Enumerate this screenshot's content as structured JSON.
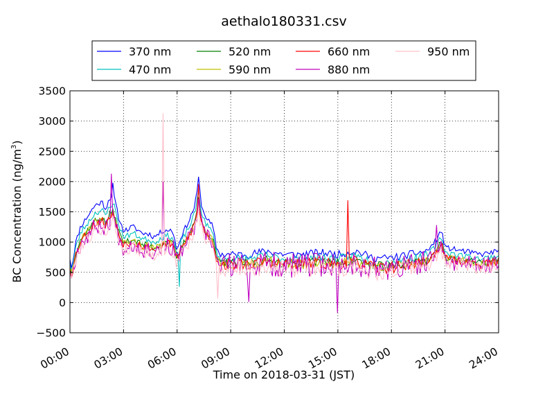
{
  "chart_data": {
    "type": "line",
    "title": "aethalo180331.csv",
    "xlabel": "Time on 2018-03-31 (JST)",
    "ylabel": "BC Concentration (ng/m",
    "ylabel_sup": "3",
    "ylabel_close": ")",
    "xlim": [
      0,
      24
    ],
    "ylim": [
      -500,
      3500
    ],
    "grid": true,
    "grid_style": "dotted",
    "legend_position": "top-center",
    "legend_columns": 4,
    "x_ticks": [
      0,
      3,
      6,
      9,
      12,
      15,
      18,
      21,
      24
    ],
    "x_tick_labels": [
      "00:00",
      "03:00",
      "06:00",
      "09:00",
      "12:00",
      "15:00",
      "18:00",
      "21:00",
      "24:00"
    ],
    "y_ticks": [
      -500,
      0,
      500,
      1000,
      1500,
      2000,
      2500,
      3000,
      3500
    ],
    "y_tick_labels": [
      "−500",
      "0",
      "500",
      "1000",
      "1500",
      "2000",
      "2500",
      "3000",
      "3500"
    ],
    "x_unit": "hours since 00:00",
    "base_profile": {
      "x": [
        0,
        0.1,
        0.3,
        0.6,
        1.0,
        1.4,
        1.8,
        2.0,
        2.2,
        2.4,
        2.5,
        2.7,
        2.9,
        3.0,
        3.2,
        3.5,
        3.8,
        4.1,
        4.4,
        4.7,
        5.0,
        5.3,
        5.6,
        5.8,
        6.0,
        6.2,
        6.4,
        6.7,
        7.0,
        7.2,
        7.4,
        7.7,
        8.0,
        8.2,
        8.4,
        8.7,
        9.0,
        10,
        11,
        12,
        13,
        14,
        15,
        16,
        17,
        18,
        19,
        20,
        20.5,
        20.8,
        21.0,
        22,
        23,
        24
      ],
      "y": [
        600,
        450,
        800,
        1050,
        1200,
        1350,
        1400,
        1300,
        1450,
        1500,
        1450,
        1200,
        1050,
        1000,
        1000,
        1050,
        1000,
        950,
        950,
        900,
        950,
        1000,
        1000,
        950,
        700,
        900,
        1000,
        1150,
        1350,
        1700,
        1300,
        1150,
        1050,
        750,
        650,
        650,
        650,
        650,
        700,
        650,
        650,
        680,
        650,
        700,
        600,
        600,
        650,
        700,
        850,
        1000,
        750,
        700,
        650,
        700
      ]
    },
    "series": [
      {
        "name": "370 nm",
        "color": "#0000ff",
        "scale": 1.16,
        "offset": 40,
        "noise": 45,
        "seed": 11
      },
      {
        "name": "470 nm",
        "color": "#00bfbf",
        "scale": 1.08,
        "offset": 20,
        "noise": 50,
        "seed": 23
      },
      {
        "name": "520 nm",
        "color": "#008000",
        "scale": 1.0,
        "offset": 0,
        "noise": 55,
        "seed": 37
      },
      {
        "name": "590 nm",
        "color": "#bfbf00",
        "scale": 0.98,
        "offset": 0,
        "noise": 60,
        "seed": 41
      },
      {
        "name": "660 nm",
        "color": "#ff0000",
        "scale": 0.97,
        "offset": 0,
        "noise": 70,
        "seed": 53
      },
      {
        "name": "880 nm",
        "color": "#bf00bf",
        "scale": 0.93,
        "offset": 0,
        "noise": 150,
        "seed": 67
      },
      {
        "name": "950 nm",
        "color": "#ffc0cb",
        "scale": 0.9,
        "offset": -20,
        "noise": 110,
        "seed": 79
      }
    ],
    "spikes": [
      {
        "series": "950 nm",
        "x": 5.25,
        "y": 3130
      },
      {
        "series": "880 nm",
        "x": 5.25,
        "y": 2000
      },
      {
        "series": "880 nm",
        "x": 2.3,
        "y": 2130
      },
      {
        "series": "370 nm",
        "x": 2.4,
        "y": 1980
      },
      {
        "series": "370 nm",
        "x": 7.2,
        "y": 2080
      },
      {
        "series": "660 nm",
        "x": 7.2,
        "y": 1960
      },
      {
        "series": "660 nm",
        "x": 15.6,
        "y": 1690
      },
      {
        "series": "880 nm",
        "x": 15.0,
        "y": -170
      },
      {
        "series": "880 nm",
        "x": 20.55,
        "y": 1280
      },
      {
        "series": "470 nm",
        "x": 6.15,
        "y": 260
      },
      {
        "series": "950 nm",
        "x": 8.3,
        "y": 70
      },
      {
        "series": "880 nm",
        "x": 10.0,
        "y": 10
      }
    ]
  }
}
